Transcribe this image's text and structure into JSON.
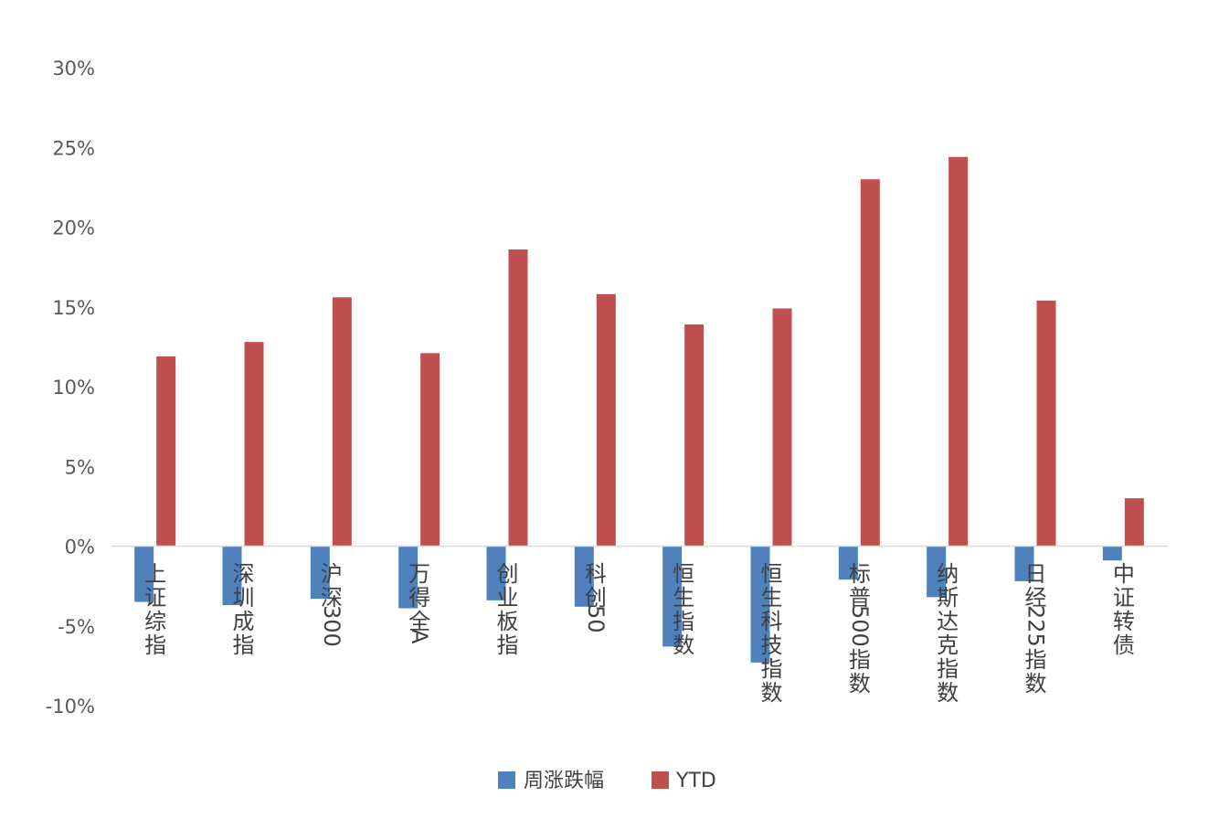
{
  "chart_data": {
    "type": "bar",
    "categories": [
      "上证综指",
      "深圳成指",
      "沪深300",
      "万得全A",
      "创业板指",
      "科创50",
      "恒生指数",
      "恒生科技指数",
      "标普500指数",
      "纳斯达克指数",
      "日经225指数",
      "中证转债"
    ],
    "series": [
      {
        "name": "周涨跌幅",
        "color": "#4f81bd",
        "values": [
          -3.5,
          -3.7,
          -3.3,
          -3.9,
          -3.4,
          -3.8,
          -6.3,
          -7.3,
          -2.1,
          -3.2,
          -2.2,
          -0.9
        ]
      },
      {
        "name": "YTD",
        "color": "#c0504d",
        "values": [
          11.9,
          12.8,
          15.6,
          12.1,
          18.6,
          15.8,
          13.9,
          14.9,
          23.0,
          24.4,
          15.4,
          3.0
        ]
      }
    ],
    "y_ticks": [
      "30%",
      "25%",
      "20%",
      "15%",
      "10%",
      "5%",
      "0%",
      "-5%",
      "-10%"
    ],
    "ylim": [
      -10,
      30
    ],
    "legend_position": "bottom",
    "grid": false
  }
}
